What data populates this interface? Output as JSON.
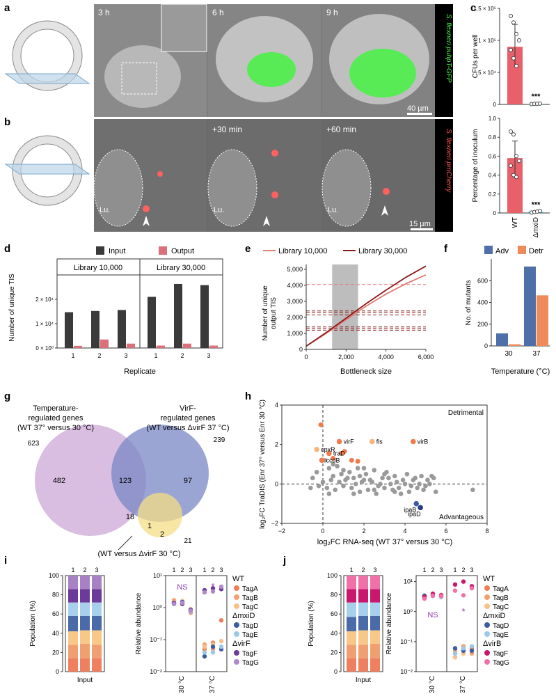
{
  "panels": {
    "a": {
      "letter": "a",
      "frames": [
        "3 h",
        "6 h",
        "9 h"
      ],
      "strain_label": "S. flexneri puhpT-GFP",
      "scalebar": "40 µm"
    },
    "b": {
      "letter": "b",
      "frames": [
        "",
        "+30 min",
        "+60 min"
      ],
      "strain_label": "S. flexneri pmCherry",
      "lumen": "Lu.",
      "scalebar": "15 µm"
    },
    "c": {
      "letter": "c"
    },
    "d": {
      "letter": "d"
    },
    "e": {
      "letter": "e"
    },
    "f": {
      "letter": "f"
    },
    "g": {
      "letter": "g"
    },
    "h": {
      "letter": "h"
    },
    "i": {
      "letter": "i"
    },
    "j": {
      "letter": "j"
    }
  },
  "chart_data": [
    {
      "id": "c-top",
      "type": "bar",
      "categories": [
        "WT",
        "ΔmxiD"
      ],
      "values": [
        90000,
        800
      ],
      "errors": [
        [
          62000,
          125000
        ],
        [
          0,
          2000
        ]
      ],
      "points": [
        [
          138000,
          128000,
          110000,
          100000,
          85000,
          72000,
          60000
        ],
        [
          500,
          800,
          1000,
          1200
        ]
      ],
      "ylabel": "CFUs per well",
      "yticks": [
        "0",
        "5 × 10⁴",
        "1 × 10⁵",
        "1.5 × 10⁵"
      ],
      "ylim": [
        0,
        150000
      ],
      "significance": "***",
      "colors": [
        "#e8606a",
        "#2bb3b0"
      ]
    },
    {
      "id": "c-bottom",
      "type": "bar",
      "categories": [
        "WT",
        "ΔmxiD"
      ],
      "values": [
        0.58,
        0.01
      ],
      "errors": [
        [
          0.4,
          0.76
        ],
        [
          0,
          0.02
        ]
      ],
      "points": [
        [
          0.86,
          0.83,
          0.6,
          0.55,
          0.5,
          0.4,
          0.38
        ],
        [
          0.005,
          0.01,
          0.015,
          0.02
        ]
      ],
      "ylabel": "Percentage of inoculum",
      "yticks": [
        "0",
        "0.2",
        "0.4",
        "0.6",
        "0.8",
        "1.0"
      ],
      "ylim": [
        0,
        1.0
      ],
      "significance": "***",
      "colors": [
        "#e8606a",
        "#2bb3b0"
      ]
    },
    {
      "id": "d",
      "type": "bar",
      "groups": [
        "Library 10,000",
        "Library 30,000"
      ],
      "categories": [
        "1",
        "2",
        "3",
        "1",
        "2",
        "3"
      ],
      "series": [
        {
          "name": "Input",
          "values": [
            14700,
            15200,
            15600,
            21000,
            26300,
            25800
          ],
          "color": "#3a3a3a"
        },
        {
          "name": "Output",
          "values": [
            900,
            3500,
            1800,
            1000,
            1800,
            1000
          ],
          "color": "#d9707a"
        }
      ],
      "xlabel": "Replicate",
      "ylabel": "Number of unique TIS",
      "yticks": [
        "0 × 10⁰",
        "1 × 10⁴",
        "2 × 10⁴"
      ],
      "ylim": [
        0,
        30000
      ]
    },
    {
      "id": "e",
      "type": "line",
      "series": [
        {
          "name": "Library 10,000",
          "color": "#e07a74",
          "x": [
            0,
            1000,
            2000,
            3000,
            4000,
            5000,
            6000
          ],
          "y": [
            200,
            1000,
            1850,
            2700,
            3450,
            4100,
            4650
          ],
          "plateau": 4050
        },
        {
          "name": "Library 30,000",
          "color": "#8b1a1a",
          "x": [
            0,
            1000,
            2000,
            3000,
            4000,
            5000,
            6000
          ],
          "y": [
            200,
            1050,
            1950,
            2850,
            3700,
            4500,
            5200
          ]
        }
      ],
      "hlines": [
        2400,
        2300,
        2150,
        1400,
        1300,
        1200
      ],
      "shade": [
        1300,
        2600
      ],
      "xlabel": "Bottleneck size",
      "ylabel": "Number of unique output TIS",
      "xticks": [
        "0",
        "2,000",
        "4,000",
        "6,000"
      ],
      "yticks": [
        "0",
        "1,000",
        "2,000",
        "3,000",
        "4,000",
        "5,000"
      ],
      "xlim": [
        0,
        6000
      ],
      "ylim": [
        0,
        5300
      ]
    },
    {
      "id": "f",
      "type": "bar",
      "categories": [
        "30",
        "37"
      ],
      "series": [
        {
          "name": "Adv",
          "values": [
            115,
            730
          ],
          "color": "#4e6fa8"
        },
        {
          "name": "Detr",
          "values": [
            15,
            465
          ],
          "color": "#ef8a5a"
        }
      ],
      "xlabel": "Temperature (°C)",
      "ylabel": "No. of mutants",
      "yticks": [
        "0",
        "200",
        "400",
        "600"
      ],
      "ylim": [
        0,
        800
      ]
    },
    {
      "id": "g",
      "type": "venn",
      "sets": [
        {
          "label": "Temperature-regulated genes (WT 37° versus 30 °C)",
          "total": "623",
          "color": "#c9a3d6"
        },
        {
          "label": "VirF-regulated genes (WT versus ΔvirF 37 °C)",
          "total": "239",
          "color": "#7a87c4"
        },
        {
          "label": "(WT versus ΔvirF 30 °C)",
          "total": "21",
          "color": "#f4de86"
        }
      ],
      "regions": [
        "482",
        "123",
        "97",
        "18",
        "1",
        "2"
      ]
    },
    {
      "id": "h",
      "type": "scatter",
      "xlabel": "log₂FC RNA-seq (WT 37° versus 30 °C)",
      "ylabel": "log₂FC TraDIS (Enr 37° versus Enr 30 °C)",
      "xticks": [
        "−2",
        "0",
        "2",
        "4",
        "6",
        "8"
      ],
      "yticks": [
        "−2",
        "0",
        "2",
        "4"
      ],
      "xlim": [
        -2,
        8
      ],
      "ylim": [
        -2,
        4
      ],
      "corner_labels": [
        "Detrimental",
        "Advantageous"
      ],
      "points_grey": [
        [
          -0.3,
          0.6
        ],
        [
          0.1,
          1.2
        ],
        [
          0.3,
          0.8
        ],
        [
          0.5,
          0.4
        ],
        [
          0.7,
          0.9
        ],
        [
          0.9,
          0.5
        ],
        [
          1.1,
          0.2
        ],
        [
          1.3,
          0.6
        ],
        [
          1.5,
          0.3
        ],
        [
          1.7,
          0.8
        ],
        [
          1.9,
          0.1
        ],
        [
          2.1,
          0.5
        ],
        [
          2.3,
          0.2
        ],
        [
          2.5,
          0.7
        ],
        [
          2.7,
          -0.1
        ],
        [
          2.9,
          0.3
        ],
        [
          3.1,
          0.6
        ],
        [
          3.3,
          0.0
        ],
        [
          3.5,
          0.4
        ],
        [
          3.7,
          -0.2
        ],
        [
          3.9,
          0.2
        ],
        [
          4.1,
          0.5
        ],
        [
          4.3,
          -0.1
        ],
        [
          4.5,
          0.3
        ],
        [
          4.7,
          0.0
        ],
        [
          4.9,
          -0.3
        ],
        [
          5.1,
          0.2
        ],
        [
          5.3,
          0.4
        ],
        [
          5.5,
          -0.4
        ],
        [
          0.0,
          0.1
        ],
        [
          0.2,
          -0.2
        ],
        [
          0.4,
          0.2
        ],
        [
          0.6,
          -0.3
        ],
        [
          0.8,
          0.1
        ],
        [
          1.0,
          -0.1
        ],
        [
          1.2,
          0.3
        ],
        [
          1.4,
          -0.2
        ],
        [
          1.6,
          0.0
        ],
        [
          1.8,
          -0.4
        ],
        [
          2.0,
          0.2
        ],
        [
          2.2,
          -0.3
        ],
        [
          2.4,
          0.1
        ],
        [
          2.6,
          -0.5
        ],
        [
          2.8,
          0.0
        ],
        [
          3.0,
          -0.2
        ],
        [
          3.2,
          0.3
        ],
        [
          3.4,
          -0.3
        ],
        [
          3.6,
          0.1
        ],
        [
          3.8,
          -0.5
        ],
        [
          4.0,
          0.0
        ],
        [
          4.2,
          -0.4
        ],
        [
          4.4,
          0.2
        ],
        [
          4.6,
          -0.2
        ],
        [
          4.8,
          0.4
        ],
        [
          5.0,
          -0.1
        ],
        [
          5.2,
          0.0
        ],
        [
          5.4,
          0.3
        ],
        [
          -0.5,
          0.3
        ],
        [
          -0.2,
          -0.1
        ],
        [
          1.0,
          0.7
        ],
        [
          2.0,
          0.8
        ],
        [
          3.0,
          0.5
        ],
        [
          0.5,
          1.0
        ],
        [
          1.5,
          -0.5
        ],
        [
          2.5,
          -0.3
        ],
        [
          3.5,
          -0.4
        ],
        [
          7.3,
          -0.3
        ],
        [
          -0.6,
          -0.2
        ],
        [
          0.3,
          -0.5
        ],
        [
          1.8,
          0.4
        ]
      ],
      "points_labeled": [
        {
          "label": "virB",
          "x": 4.4,
          "y": 2.15,
          "color": "#ef7b4a"
        },
        {
          "label": "fis",
          "x": 2.4,
          "y": 2.15,
          "color": "#f5b57c"
        },
        {
          "label": "virF",
          "x": 0.8,
          "y": 2.15,
          "color": "#ef7b4a"
        },
        {
          "label": "traD",
          "x": 0.3,
          "y": 1.55,
          "color": "#ef7b4a"
        },
        {
          "label": "cpxR",
          "x": -0.3,
          "y": 1.75,
          "color": "#f5b57c"
        },
        {
          "label": "ccdB",
          "x": -0.05,
          "y": 1.2,
          "color": "#ef7b4a"
        },
        {
          "label": "ipaB",
          "x": 4.55,
          "y": -1.0,
          "color": "#3c5ca0"
        },
        {
          "label": "ipaD",
          "x": 4.75,
          "y": -1.2,
          "color": "#283f80"
        }
      ],
      "points_orange_extra": [
        [
          -0.1,
          3.0
        ],
        [
          0.9,
          1.55
        ],
        [
          1.05,
          1.65
        ],
        [
          1.4,
          1.2
        ],
        [
          1.7,
          1.15
        ],
        [
          0.5,
          1.3
        ]
      ]
    },
    {
      "id": "i-left",
      "type": "stacked_bar",
      "categories": [
        "1",
        "2",
        "3"
      ],
      "segments_bottom_to_top": [
        "TagA",
        "TagB",
        "TagC",
        "TagD",
        "TagE",
        "TagF",
        "TagG"
      ],
      "colors": [
        "#ee8060",
        "#f0a070",
        "#f7c888",
        "#4a6aa8",
        "#a8d0ec",
        "#6c3a98",
        "#a880c4"
      ],
      "values": [
        [
          14,
          14,
          14,
          16,
          14,
          14,
          14
        ],
        [
          14,
          15,
          14,
          15,
          14,
          14,
          14
        ],
        [
          14,
          14,
          15,
          15,
          14,
          14,
          14
        ]
      ],
      "xlabel": "Input",
      "ylabel": "Population (%)",
      "yticks": [
        "0",
        "20",
        "40",
        "60",
        "80",
        "100"
      ],
      "ylim": [
        0,
        100
      ]
    },
    {
      "id": "i-right",
      "type": "scatter",
      "ylabel": "Relative abundance",
      "yticks": [
        "10⁻²",
        "10⁻¹",
        "10⁰",
        "10¹"
      ],
      "ylim_log10": [
        -2,
        1
      ],
      "groups": [
        "30 °C",
        "37 °C"
      ],
      "replicates": [
        "1",
        "2",
        "3"
      ],
      "annotations": [
        "NS",
        "*"
      ],
      "legend": [
        {
          "header": "WT",
          "items": [
            [
              "TagA",
              "#ee7f55"
            ],
            [
              "TagB",
              "#f4a070"
            ],
            [
              "TagC",
              "#f7c088"
            ]
          ]
        },
        {
          "header": "ΔmxiD",
          "items": [
            [
              "TagD",
              "#3c5ca0"
            ],
            [
              "TagE",
              "#9cc8e8"
            ]
          ]
        },
        {
          "header": "ΔvirF",
          "items": [
            [
              "TagF",
              "#6c3a98"
            ],
            [
              "TagG",
              "#b088cc"
            ]
          ]
        }
      ],
      "points": {
        "30": [
          [
            1.6,
            1.7,
            1.5,
            1.4,
            1.3,
            1.4,
            1.3
          ],
          [
            1.5,
            1.4,
            1.6,
            1.5,
            1.4,
            1.3,
            1.4
          ],
          [
            0.7,
            0.8,
            0.9,
            0.8,
            0.75,
            0.85,
            0.8
          ]
        ],
        "37": [
          [
            0.05,
            0.07,
            0.06,
            0.03,
            0.04,
            3.5,
            3.0
          ],
          [
            0.08,
            0.05,
            0.07,
            0.06,
            0.04,
            4.0,
            3.2
          ],
          [
            0.4,
            0.06,
            0.09,
            0.05,
            0.06,
            3.8,
            4.5
          ]
        ]
      }
    },
    {
      "id": "j-left",
      "type": "stacked_bar",
      "categories": [
        "1",
        "2",
        "3"
      ],
      "segments_bottom_to_top": [
        "TagA",
        "TagB",
        "TagC",
        "TagD",
        "TagE",
        "TagF",
        "TagG"
      ],
      "colors": [
        "#ee8060",
        "#f0a070",
        "#f7c888",
        "#4a6aa8",
        "#a8d0ec",
        "#c8176c",
        "#f070a8"
      ],
      "values": [
        [
          14,
          14,
          14,
          15,
          15,
          14,
          14
        ],
        [
          14,
          14,
          15,
          15,
          14,
          14,
          14
        ],
        [
          14,
          15,
          14,
          15,
          14,
          14,
          14
        ]
      ],
      "xlabel": "Input",
      "ylabel": "Population (%)",
      "yticks": [
        "0",
        "20",
        "40",
        "60",
        "80",
        "100"
      ],
      "ylim": [
        0,
        100
      ]
    },
    {
      "id": "j-right",
      "type": "scatter",
      "ylabel": "Relative abundance",
      "yticks": [
        "10⁻²",
        "10⁻¹",
        "10⁰",
        "10¹"
      ],
      "ylim_log10": [
        -2,
        1.2
      ],
      "groups": [
        "30 °C",
        "37 °C"
      ],
      "replicates": [
        "1",
        "2",
        "3"
      ],
      "annotations": [
        "NS",
        "*"
      ],
      "legend": [
        {
          "header": "WT",
          "items": [
            [
              "TagA",
              "#ee7f55"
            ],
            [
              "TagB",
              "#f4a070"
            ],
            [
              "TagC",
              "#f7c088"
            ]
          ]
        },
        {
          "header": "ΔmxiD",
          "items": [
            [
              "TagD",
              "#3c5ca0"
            ],
            [
              "TagE",
              "#9cc8e8"
            ]
          ]
        },
        {
          "header": "ΔvirB",
          "items": [
            [
              "TagF",
              "#c8176c"
            ],
            [
              "TagG",
              "#f070a8"
            ]
          ]
        }
      ],
      "points": {
        "30": [
          [
            3.0,
            3.2,
            2.8,
            3.4,
            2.9,
            3.1,
            2.7
          ],
          [
            3.5,
            4.0,
            3.8,
            3.6,
            3.3,
            3.9,
            3.4
          ],
          [
            3.2,
            3.6,
            3.0,
            3.4,
            3.1,
            3.5,
            3.3
          ]
        ],
        "37": [
          [
            0.04,
            0.05,
            0.03,
            0.06,
            0.04,
            8.0,
            5.0
          ],
          [
            0.05,
            0.07,
            0.04,
            0.05,
            0.06,
            10.0,
            3.5
          ],
          [
            0.06,
            0.04,
            0.05,
            0.05,
            0.07,
            7.0,
            6.0
          ]
        ]
      }
    }
  ]
}
